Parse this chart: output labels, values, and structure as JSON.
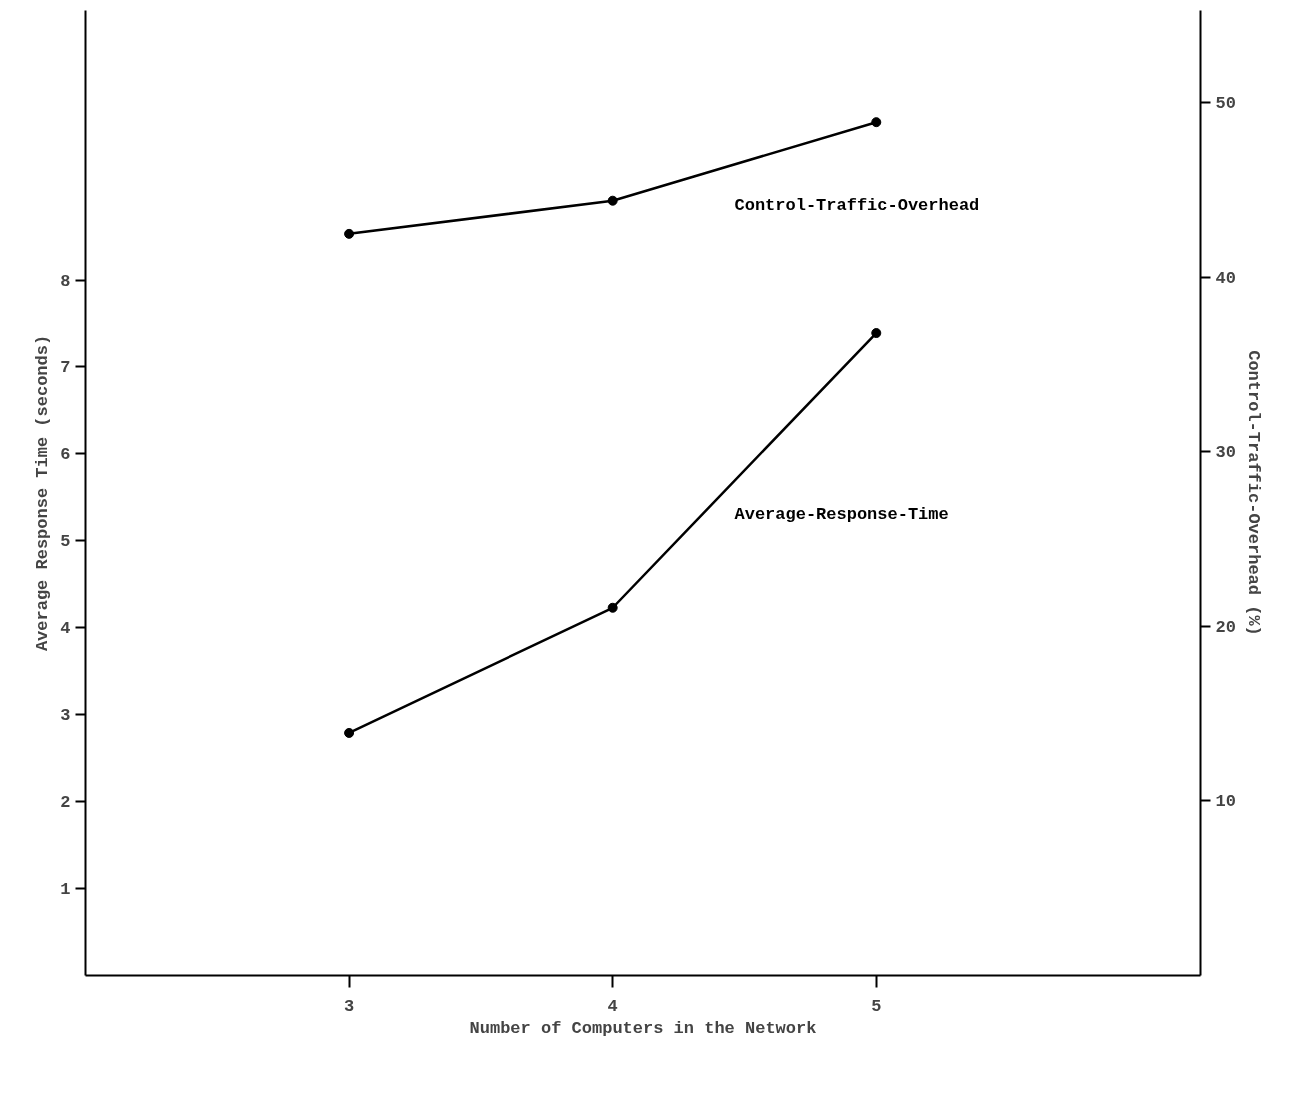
{
  "chart_data": {
    "type": "line",
    "xlabel": "Number of Computers in the Network",
    "ylabel": "Average Response Time (seconds)",
    "y2label": "Control-Traffic-Overhead (%)",
    "x": [
      3,
      4,
      5
    ],
    "xlim": [
      2,
      6.23
    ],
    "xticks": [
      3,
      4,
      5
    ],
    "ylim": [
      0,
      11.1
    ],
    "yticks": [
      1,
      2,
      3,
      4,
      5,
      6,
      7,
      8
    ],
    "y2lim": [
      0,
      55.3
    ],
    "y2ticks": [
      10,
      20,
      30,
      40,
      50
    ],
    "marker": "circle",
    "line_style": "solid",
    "grid": false,
    "legend": false,
    "series": [
      {
        "name": "Control-Traffic-Overhead",
        "color": "#000000",
        "values": [
          42.5,
          44.4,
          48.9
        ],
        "axis": "y2"
      },
      {
        "name": "Average-Response-Time",
        "color": "#000000",
        "values": [
          2.79,
          4.23,
          7.39
        ]
      }
    ]
  }
}
